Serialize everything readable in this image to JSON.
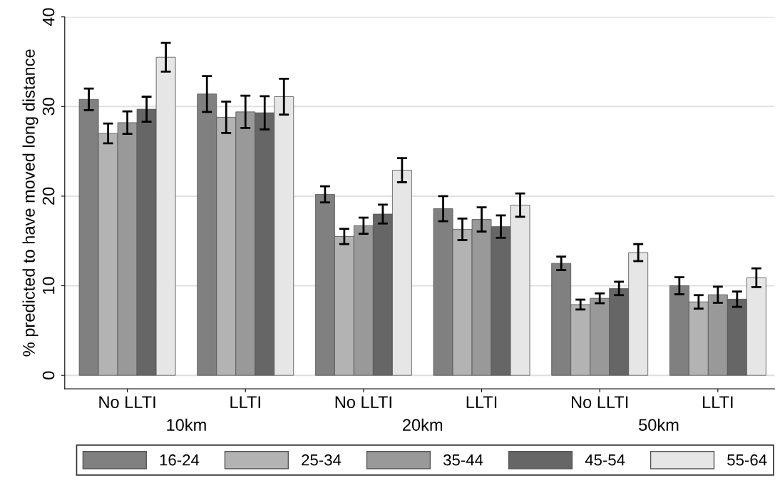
{
  "chart_data": {
    "type": "bar",
    "ylabel": "% predicted to have moved long distance",
    "categories": [
      "No LLTI",
      "LLTI",
      "No LLTI",
      "LLTI",
      "No LLTI",
      "LLTI"
    ],
    "annotations": [
      "10km",
      "20km",
      "50km"
    ],
    "series": [
      {
        "name": "16-24",
        "color": "#808080",
        "values": [
          30.8,
          31.4,
          20.2,
          18.6,
          12.5,
          10.0
        ],
        "errors": [
          1.2,
          2.0,
          0.9,
          1.4,
          0.75,
          0.95
        ]
      },
      {
        "name": "25-34",
        "color": "#b3b3b3",
        "values": [
          27.0,
          28.8,
          15.5,
          16.3,
          7.9,
          8.2
        ],
        "errors": [
          1.1,
          1.75,
          0.85,
          1.2,
          0.55,
          0.75
        ]
      },
      {
        "name": "35-44",
        "color": "#999999",
        "values": [
          28.2,
          29.4,
          16.7,
          17.4,
          8.6,
          9.0
        ],
        "errors": [
          1.25,
          1.8,
          0.9,
          1.35,
          0.55,
          0.9
        ]
      },
      {
        "name": "45-54",
        "color": "#666666",
        "values": [
          29.7,
          29.3,
          18.0,
          16.6,
          9.7,
          8.5
        ],
        "errors": [
          1.4,
          1.85,
          1.05,
          1.25,
          0.75,
          0.85
        ]
      },
      {
        "name": "55-64",
        "color": "#e6e6e6",
        "values": [
          35.5,
          31.1,
          22.9,
          19.0,
          13.7,
          10.9
        ],
        "errors": [
          1.6,
          2.0,
          1.35,
          1.3,
          0.95,
          1.05
        ]
      }
    ],
    "ylim": [
      -1.5,
      40
    ],
    "yticks": [
      0,
      10,
      20,
      30,
      40
    ],
    "grid": "y",
    "legend": "bottom"
  }
}
